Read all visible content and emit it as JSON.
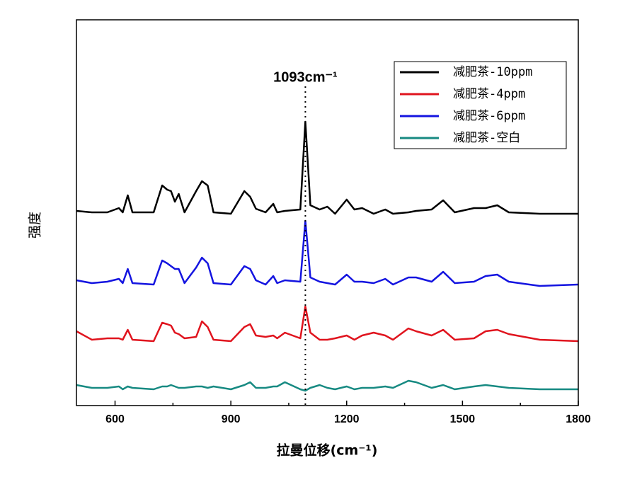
{
  "chart_data": {
    "type": "line",
    "xlabel": "拉曼位移(cm⁻¹)",
    "ylabel": "强度",
    "xlim": [
      500,
      1800
    ],
    "xticks": [
      600,
      900,
      1200,
      1500,
      1800
    ],
    "ylim": [
      0,
      545
    ],
    "legend": "top-right",
    "annotations": [
      {
        "text": "1093cm⁻¹",
        "x": 1093
      }
    ],
    "x": [
      500,
      540,
      580,
      610,
      620,
      633,
      645,
      700,
      722,
      735,
      745,
      755,
      765,
      780,
      810,
      825,
      840,
      855,
      900,
      935,
      950,
      965,
      990,
      1010,
      1020,
      1040,
      1080,
      1093,
      1106,
      1130,
      1150,
      1170,
      1200,
      1220,
      1240,
      1270,
      1300,
      1320,
      1360,
      1380,
      1420,
      1450,
      1480,
      1530,
      1560,
      1590,
      1620,
      1700,
      1800
    ],
    "series": [
      {
        "name": "减肥茶-10ppm",
        "color": "#000000",
        "values": [
          275,
          273,
          273,
          279,
          273,
          297,
          273,
          273,
          311,
          305,
          303,
          288,
          299,
          273,
          303,
          317,
          311,
          273,
          271,
          303,
          295,
          278,
          273,
          285,
          273,
          275,
          277,
          401,
          283,
          277,
          281,
          271,
          291,
          277,
          279,
          271,
          277,
          271,
          273,
          275,
          277,
          290,
          273,
          279,
          279,
          283,
          273,
          271,
          271
        ]
      },
      {
        "name": "减肥茶-4ppm",
        "color": "#e0141e",
        "values": [
          105,
          93,
          95,
          95,
          93,
          107,
          93,
          91,
          117,
          115,
          113,
          103,
          101,
          95,
          97,
          119,
          111,
          93,
          91,
          111,
          115,
          99,
          97,
          99,
          95,
          103,
          95,
          140,
          103,
          93,
          93,
          95,
          99,
          93,
          99,
          103,
          99,
          93,
          109,
          105,
          99,
          107,
          93,
          95,
          105,
          107,
          101,
          93,
          91
        ]
      },
      {
        "name": "减肥茶-6ppm",
        "color": "#1414e0",
        "values": [
          177,
          173,
          175,
          179,
          173,
          193,
          173,
          171,
          205,
          201,
          197,
          193,
          193,
          173,
          195,
          209,
          201,
          173,
          171,
          197,
          193,
          177,
          171,
          183,
          173,
          177,
          175,
          261,
          181,
          175,
          173,
          171,
          185,
          175,
          175,
          173,
          179,
          171,
          181,
          181,
          175,
          189,
          173,
          175,
          183,
          185,
          175,
          169,
          171
        ]
      },
      {
        "name": "减肥茶-空白",
        "color": "#178a82",
        "values": [
          29,
          25,
          25,
          27,
          23,
          27,
          25,
          23,
          27,
          27,
          29,
          27,
          25,
          25,
          27,
          27,
          25,
          27,
          23,
          29,
          33,
          25,
          25,
          27,
          27,
          33,
          23,
          21,
          25,
          29,
          25,
          23,
          27,
          23,
          25,
          25,
          27,
          25,
          35,
          33,
          25,
          29,
          23,
          27,
          29,
          27,
          25,
          23,
          23
        ]
      }
    ]
  }
}
